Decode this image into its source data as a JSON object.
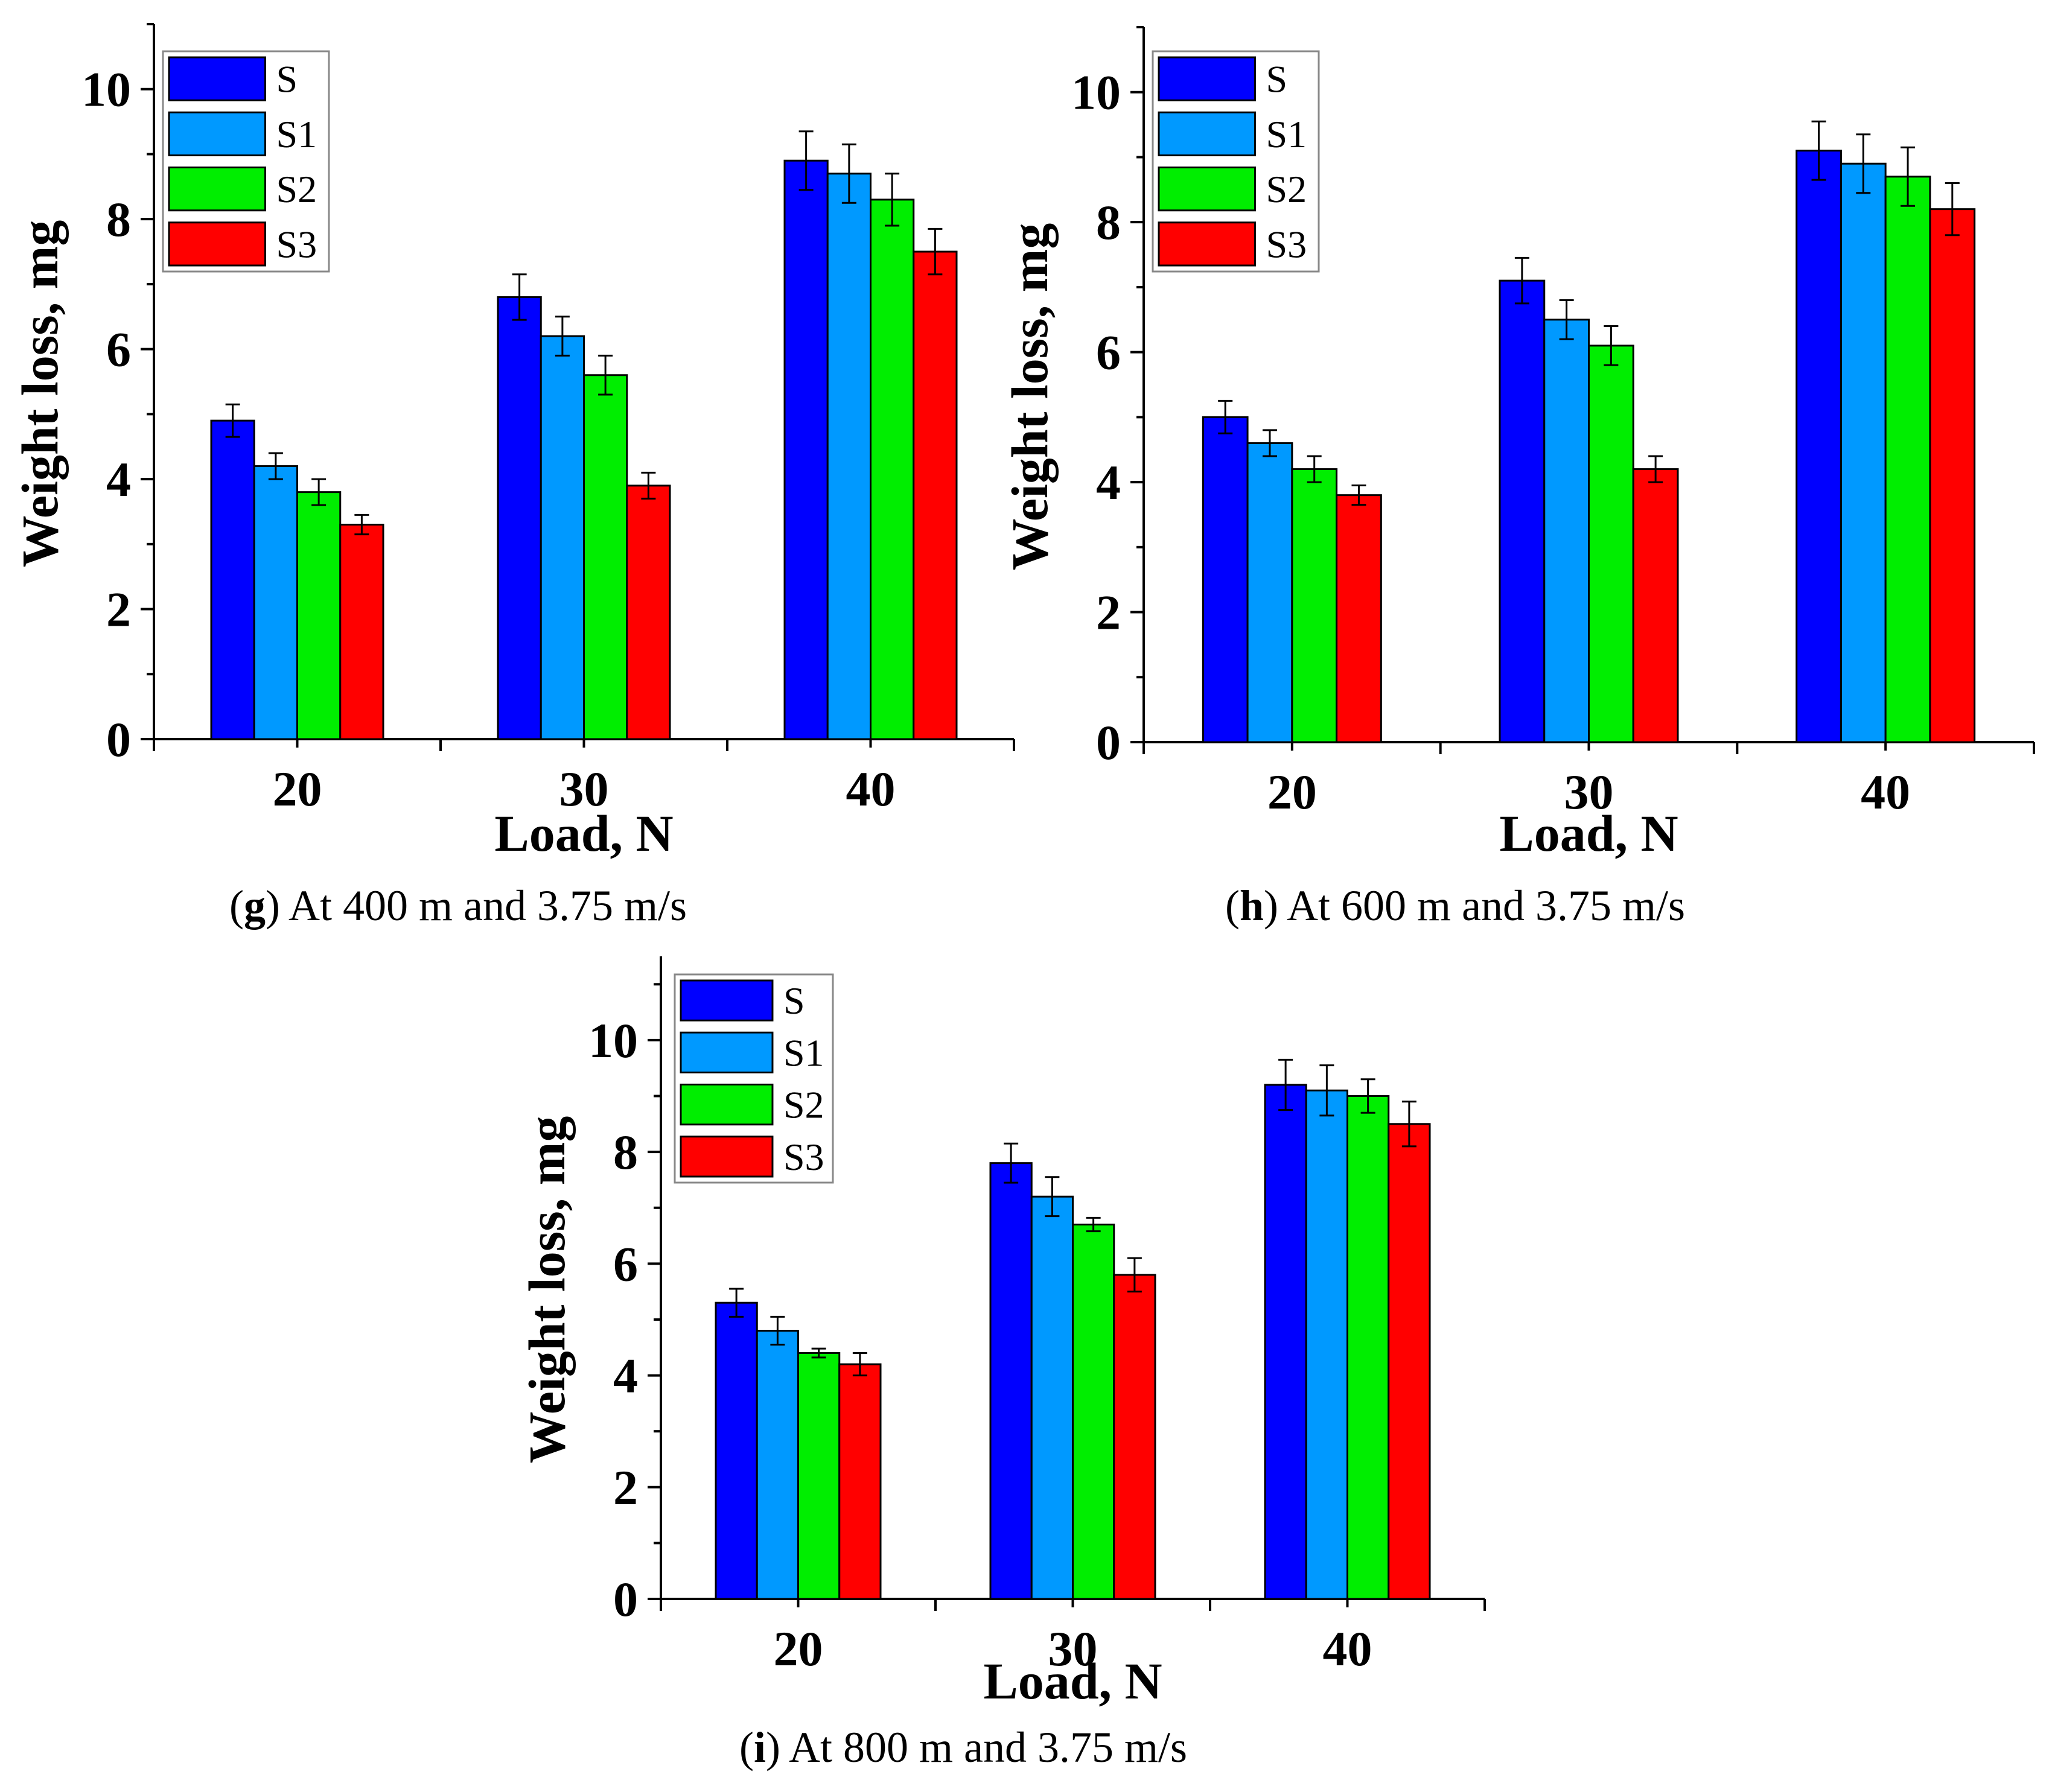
{
  "chart_data": [
    {
      "id": "g",
      "type": "bar",
      "categories": [
        "20",
        "30",
        "40"
      ],
      "series": [
        {
          "name": "S",
          "values": [
            4.9,
            6.8,
            8.9
          ],
          "errors": [
            0.25,
            0.35,
            0.45
          ]
        },
        {
          "name": "S1",
          "values": [
            4.2,
            6.2,
            8.7
          ],
          "errors": [
            0.2,
            0.3,
            0.45
          ]
        },
        {
          "name": "S2",
          "values": [
            3.8,
            5.6,
            8.3
          ],
          "errors": [
            0.2,
            0.3,
            0.4
          ]
        },
        {
          "name": "S3",
          "values": [
            3.3,
            3.9,
            7.5
          ],
          "errors": [
            0.15,
            0.2,
            0.35
          ]
        }
      ],
      "xlabel": "Load, N",
      "ylabel": "Weight loss, mg",
      "ylim": [
        0,
        11
      ],
      "yticks": [
        0,
        2,
        4,
        6,
        8,
        10
      ],
      "legend_position": "top-left",
      "caption_letter": "g",
      "caption_text": ") At 400 m and 3.75 m/s"
    },
    {
      "id": "h",
      "type": "bar",
      "categories": [
        "20",
        "30",
        "40"
      ],
      "series": [
        {
          "name": "S",
          "values": [
            5.0,
            7.1,
            9.1
          ],
          "errors": [
            0.25,
            0.35,
            0.45
          ]
        },
        {
          "name": "S1",
          "values": [
            4.6,
            6.5,
            8.9
          ],
          "errors": [
            0.2,
            0.3,
            0.45
          ]
        },
        {
          "name": "S2",
          "values": [
            4.2,
            6.1,
            8.7
          ],
          "errors": [
            0.2,
            0.3,
            0.45
          ]
        },
        {
          "name": "S3",
          "values": [
            3.8,
            4.2,
            8.2
          ],
          "errors": [
            0.15,
            0.2,
            0.4
          ]
        }
      ],
      "xlabel": "Load, N",
      "ylabel": "Weight loss, mg",
      "ylim": [
        0,
        11
      ],
      "yticks": [
        0,
        2,
        4,
        6,
        8,
        10
      ],
      "legend_position": "top-left",
      "caption_letter": "h",
      "caption_text": ") At 600 m and 3.75 m/s"
    },
    {
      "id": "i",
      "type": "bar",
      "categories": [
        "20",
        "30",
        "40"
      ],
      "series": [
        {
          "name": "S",
          "values": [
            5.3,
            7.8,
            9.2
          ],
          "errors": [
            0.25,
            0.35,
            0.45
          ]
        },
        {
          "name": "S1",
          "values": [
            4.8,
            7.2,
            9.1
          ],
          "errors": [
            0.25,
            0.35,
            0.45
          ]
        },
        {
          "name": "S2",
          "values": [
            4.4,
            6.7,
            9.0
          ],
          "errors": [
            0.08,
            0.12,
            0.3
          ]
        },
        {
          "name": "S3",
          "values": [
            4.2,
            5.8,
            8.5
          ],
          "errors": [
            0.2,
            0.3,
            0.4
          ]
        }
      ],
      "xlabel": "Load, N",
      "ylabel": "Weight loss, mg",
      "ylim": [
        0,
        12
      ],
      "yticks": [
        0,
        2,
        4,
        6,
        8,
        10
      ],
      "legend_position": "top-left",
      "caption_letter": "i",
      "caption_text": ") At 800 m and 3.75 m/s"
    }
  ],
  "colors": {
    "S": "#0000ff",
    "S1": "#0099ff",
    "S2": "#00ee00",
    "S3": "#ff0000"
  }
}
